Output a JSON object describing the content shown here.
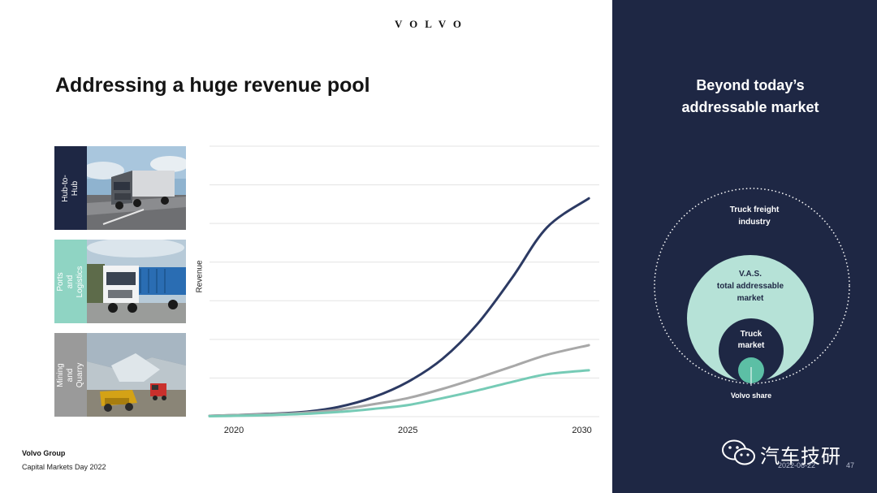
{
  "brand": {
    "logo_text": "VOLVO"
  },
  "slide": {
    "title": "Addressing a huge revenue pool"
  },
  "segments": [
    {
      "label": "Hub-to-Hub",
      "color": "#1e2744"
    },
    {
      "label": "Ports and\nLogistics",
      "color": "#8fd4c3"
    },
    {
      "label": "Mining and\nQuarry",
      "color": "#9a9a9a"
    }
  ],
  "chart_data": {
    "type": "line",
    "ylabel": "Revenue",
    "xlabel": "",
    "x_ticks": [
      "2020",
      "2025",
      "2030"
    ],
    "xlim": [
      2019.3,
      2030.5
    ],
    "ylim": [
      0,
      7
    ],
    "grid": true,
    "series": [
      {
        "color": "#2c3a63",
        "x": [
          2019.3,
          2020,
          2021,
          2022,
          2023,
          2024,
          2025,
          2026,
          2027,
          2028,
          2029,
          2030.2
        ],
        "values": [
          0.02,
          0.04,
          0.07,
          0.12,
          0.25,
          0.5,
          0.9,
          1.5,
          2.4,
          3.6,
          4.9,
          5.65
        ]
      },
      {
        "color": "#a8a8a8",
        "x": [
          2019.3,
          2020,
          2021,
          2022,
          2023,
          2024,
          2025,
          2026,
          2027,
          2028,
          2029,
          2030.2
        ],
        "values": [
          0.02,
          0.04,
          0.06,
          0.1,
          0.18,
          0.32,
          0.48,
          0.72,
          1.0,
          1.3,
          1.6,
          1.85
        ]
      },
      {
        "color": "#76cbb6",
        "x": [
          2019.3,
          2020,
          2021,
          2022,
          2023,
          2024,
          2025,
          2026,
          2027,
          2028,
          2029,
          2030.2
        ],
        "values": [
          0.01,
          0.02,
          0.04,
          0.07,
          0.12,
          0.2,
          0.3,
          0.48,
          0.68,
          0.9,
          1.1,
          1.2
        ]
      }
    ]
  },
  "footer": {
    "company": "Volvo Group",
    "event": "Capital Markets Day 2022"
  },
  "panel": {
    "title": "Beyond today’s\naddressable market",
    "outer_label": "Truck freight\nindustry",
    "middle_label": "V.A.S.\ntotal addressable\nmarket",
    "inner_label": "Truck\nmarket",
    "share_label": "Volvo share",
    "colors": {
      "panel": "#1e2744",
      "middle": "#b6e2d7",
      "share": "#5cbfa5"
    }
  },
  "watermark": {
    "text": "汽车技研"
  },
  "meta": {
    "date": "2022-06-22",
    "page": "47"
  }
}
